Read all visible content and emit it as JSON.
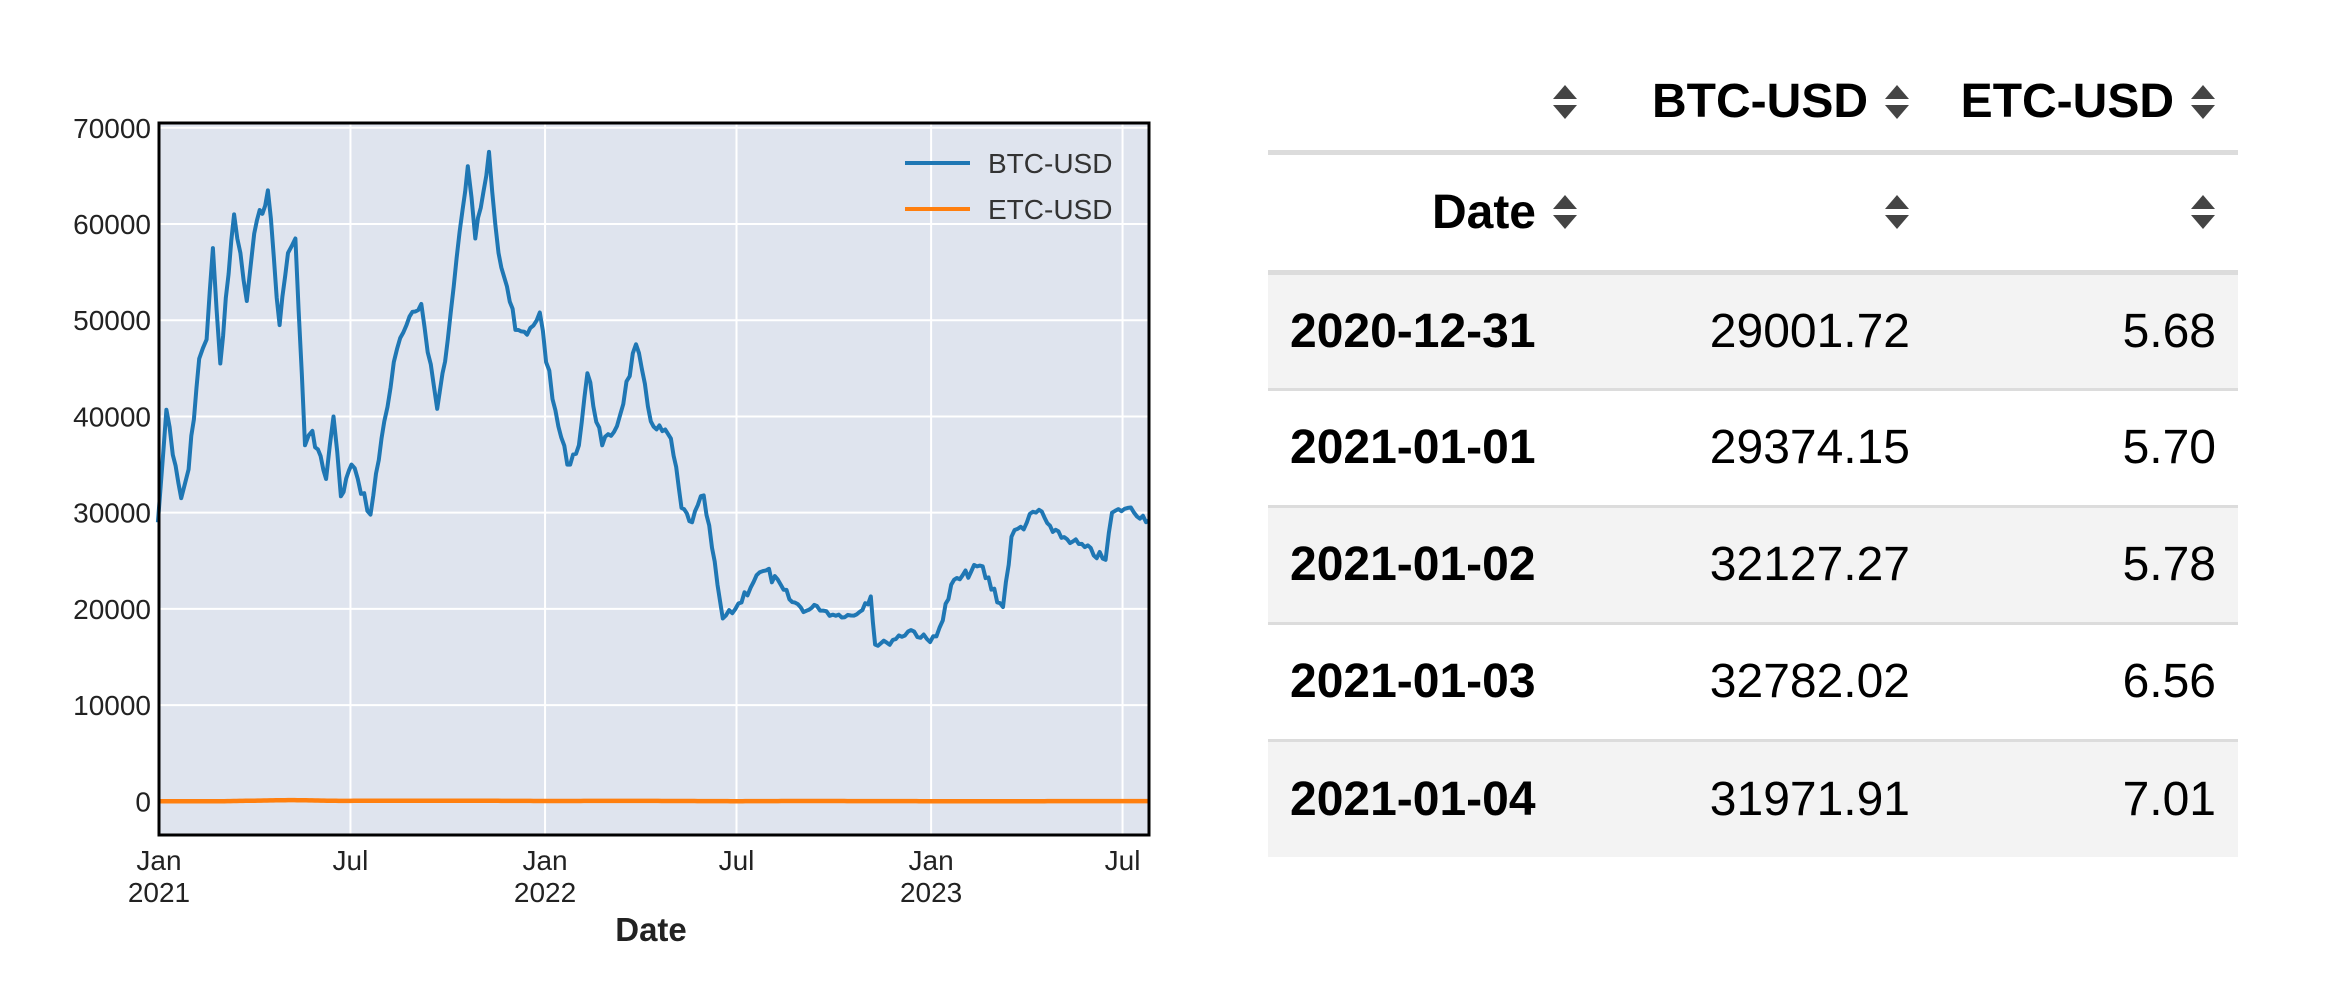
{
  "chart_data": {
    "type": "line",
    "title": "",
    "xlabel": "Date",
    "ylabel": "",
    "ylim": [
      -3500,
      70500
    ],
    "xlim": [
      "2021-01-01",
      "2023-07-26"
    ],
    "yticks": [
      0,
      10000,
      20000,
      30000,
      40000,
      50000,
      60000,
      70000
    ],
    "ytick_labels": [
      "0",
      "10000",
      "20000",
      "30000",
      "40000",
      "50000",
      "60000",
      "70000"
    ],
    "xticks": [
      {
        "date": "2021-01-01",
        "line1": "Jan",
        "line2": "2021"
      },
      {
        "date": "2021-07-01",
        "line1": "Jul",
        "line2": ""
      },
      {
        "date": "2022-01-01",
        "line1": "Jan",
        "line2": "2022"
      },
      {
        "date": "2022-07-01",
        "line1": "Jul",
        "line2": ""
      },
      {
        "date": "2023-01-01",
        "line1": "Jan",
        "line2": "2023"
      },
      {
        "date": "2023-07-01",
        "line1": "Jul",
        "line2": ""
      }
    ],
    "grid": true,
    "legend_position": "top-right",
    "background": "#dfe4ee",
    "series": [
      {
        "name": "BTC-USD",
        "color": "#1f77b4",
        "points": [
          [
            "2020-12-31",
            29002
          ],
          [
            "2021-01-08",
            40700
          ],
          [
            "2021-01-14",
            36000
          ],
          [
            "2021-01-22",
            31500
          ],
          [
            "2021-01-29",
            34500
          ],
          [
            "2021-02-08",
            46000
          ],
          [
            "2021-02-15",
            48000
          ],
          [
            "2021-02-21",
            57500
          ],
          [
            "2021-02-28",
            45500
          ],
          [
            "2021-03-13",
            61000
          ],
          [
            "2021-03-25",
            52000
          ],
          [
            "2021-04-01",
            59000
          ],
          [
            "2021-04-14",
            63500
          ],
          [
            "2021-04-25",
            49500
          ],
          [
            "2021-05-03",
            57000
          ],
          [
            "2021-05-10",
            58500
          ],
          [
            "2021-05-19",
            37000
          ],
          [
            "2021-05-26",
            38500
          ],
          [
            "2021-06-08",
            33500
          ],
          [
            "2021-06-15",
            40000
          ],
          [
            "2021-06-22",
            31700
          ],
          [
            "2021-07-02",
            35000
          ],
          [
            "2021-07-08",
            33500
          ],
          [
            "2021-07-20",
            29800
          ],
          [
            "2021-08-02",
            39500
          ],
          [
            "2021-08-14",
            47000
          ],
          [
            "2021-08-23",
            49500
          ],
          [
            "2021-09-06",
            51700
          ],
          [
            "2021-09-21",
            40800
          ],
          [
            "2021-10-01",
            48000
          ],
          [
            "2021-10-15",
            61500
          ],
          [
            "2021-10-20",
            66000
          ],
          [
            "2021-10-27",
            58500
          ],
          [
            "2021-11-09",
            67500
          ],
          [
            "2021-11-18",
            57000
          ],
          [
            "2021-11-26",
            53500
          ],
          [
            "2021-12-04",
            49000
          ],
          [
            "2021-12-15",
            48500
          ],
          [
            "2021-12-27",
            50800
          ],
          [
            "2022-01-08",
            41800
          ],
          [
            "2022-01-22",
            35000
          ],
          [
            "2022-02-02",
            37000
          ],
          [
            "2022-02-10",
            44500
          ],
          [
            "2022-02-24",
            37000
          ],
          [
            "2022-03-10",
            39000
          ],
          [
            "2022-03-28",
            47500
          ],
          [
            "2022-04-11",
            39500
          ],
          [
            "2022-04-30",
            37700
          ],
          [
            "2022-05-10",
            30500
          ],
          [
            "2022-05-20",
            29000
          ],
          [
            "2022-05-31",
            31800
          ],
          [
            "2022-06-13",
            22500
          ],
          [
            "2022-06-18",
            19000
          ],
          [
            "2022-06-30",
            20000
          ],
          [
            "2022-07-20",
            23500
          ],
          [
            "2022-07-29",
            24000
          ],
          [
            "2022-08-20",
            21000
          ],
          [
            "2022-09-05",
            19800
          ],
          [
            "2022-09-15",
            20300
          ],
          [
            "2022-09-30",
            19400
          ],
          [
            "2022-10-20",
            19300
          ],
          [
            "2022-11-05",
            21300
          ],
          [
            "2022-11-09",
            16300
          ],
          [
            "2022-11-20",
            16500
          ],
          [
            "2022-12-13",
            17800
          ],
          [
            "2022-12-31",
            16550
          ],
          [
            "2023-01-12",
            18800
          ],
          [
            "2023-01-20",
            22500
          ],
          [
            "2023-02-16",
            24500
          ],
          [
            "2023-03-10",
            20200
          ],
          [
            "2023-03-18",
            27500
          ],
          [
            "2023-04-13",
            30300
          ],
          [
            "2023-04-26",
            28000
          ],
          [
            "2023-05-15",
            27000
          ],
          [
            "2023-06-15",
            25100
          ],
          [
            "2023-06-21",
            30000
          ],
          [
            "2023-07-06",
            30500
          ],
          [
            "2023-07-26",
            29200
          ]
        ]
      },
      {
        "name": "ETC-USD",
        "color": "#ff7f0e",
        "points": [
          [
            "2020-12-31",
            6
          ],
          [
            "2021-03-01",
            12
          ],
          [
            "2021-05-06",
            130
          ],
          [
            "2021-06-20",
            45
          ],
          [
            "2021-09-01",
            70
          ],
          [
            "2021-11-01",
            55
          ],
          [
            "2022-01-01",
            35
          ],
          [
            "2022-04-01",
            45
          ],
          [
            "2022-07-01",
            16
          ],
          [
            "2022-09-01",
            35
          ],
          [
            "2023-01-01",
            16
          ],
          [
            "2023-07-26",
            20
          ]
        ]
      }
    ]
  },
  "table": {
    "header_row1": [
      "",
      "BTC-USD",
      "ETC-USD"
    ],
    "index_name": "Date",
    "rows": [
      {
        "date": "2020-12-31",
        "btc": "29001.72",
        "etc": "5.68"
      },
      {
        "date": "2021-01-01",
        "btc": "29374.15",
        "etc": "5.70"
      },
      {
        "date": "2021-01-02",
        "btc": "32127.27",
        "etc": "5.78"
      },
      {
        "date": "2021-01-03",
        "btc": "32782.02",
        "etc": "6.56"
      },
      {
        "date": "2021-01-04",
        "btc": "31971.91",
        "etc": "7.01"
      }
    ]
  }
}
